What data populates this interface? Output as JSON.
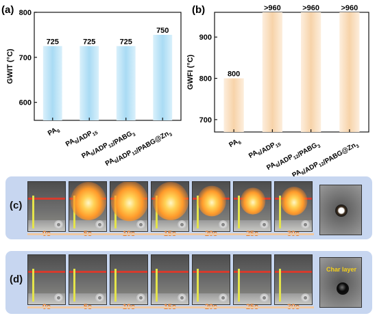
{
  "chart_data": [
    {
      "panel": "(a)",
      "type": "bar",
      "ylabel": "GWIT (°C)",
      "ylim": [
        560,
        800
      ],
      "yticks": [
        600,
        700,
        800
      ],
      "categories": [
        "PA6",
        "PA6/ADP15",
        "PA6/ADP12/PABG3",
        "PA6/ADP12/PABG@Zn3"
      ],
      "values": [
        725,
        725,
        725,
        750
      ],
      "value_labels": [
        "725",
        "725",
        "725",
        "750"
      ],
      "bar_color": "#bfe4f7"
    },
    {
      "panel": "(b)",
      "type": "bar",
      "ylabel": "GWFI (°C)",
      "ylim": [
        670,
        960
      ],
      "yticks": [
        700,
        800,
        900
      ],
      "categories": [
        "PA6",
        "PA6/ADP15",
        "PA6/ADP12/PABG3",
        "PA6/ADP12/PABG@Zn3"
      ],
      "values": [
        800,
        960,
        960,
        960
      ],
      "value_labels": [
        "800",
        ">960",
        ">960",
        ">960"
      ],
      "bar_color": "#fbe3c8"
    }
  ],
  "strip_c": {
    "label": "(c)",
    "times": [
      "0s",
      "5s",
      "10s",
      "15s",
      "20s",
      "25s",
      "30s"
    ]
  },
  "strip_d": {
    "label": "(d)",
    "times": [
      "0s",
      "5s",
      "10s",
      "15s",
      "20s",
      "25s",
      "30s"
    ],
    "char_label": "Char layer"
  }
}
